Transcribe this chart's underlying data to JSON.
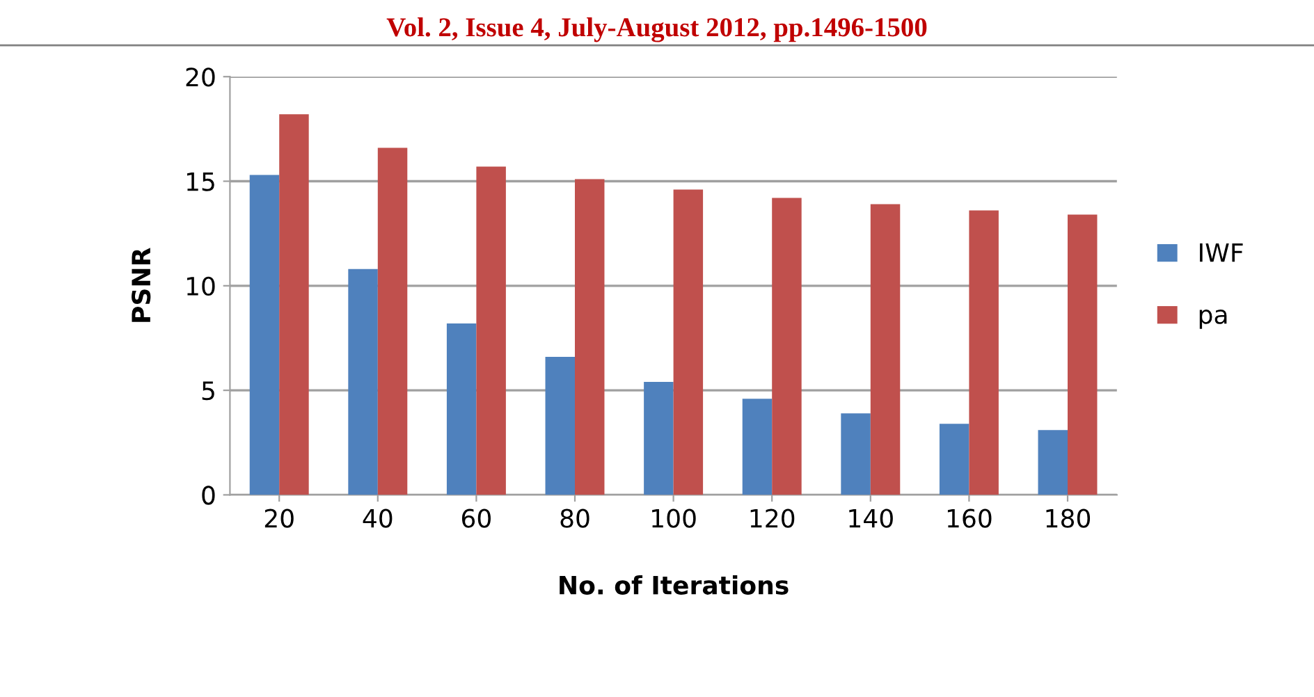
{
  "chart_data": {
    "type": "bar",
    "annotations": [
      "Vol. 2, Issue 4, July-August 2012, pp.1496-1500"
    ],
    "xlabel": "No. of Iterations",
    "ylabel": "PSNR",
    "categories": [
      "20",
      "40",
      "60",
      "80",
      "100",
      "120",
      "140",
      "160",
      "180"
    ],
    "series": [
      {
        "name": "IWF",
        "color": "#4f81bd",
        "values": [
          15.3,
          10.8,
          8.2,
          6.6,
          5.4,
          4.6,
          3.9,
          3.4,
          3.1
        ]
      },
      {
        "name": "pa",
        "color": "#c0504d",
        "values": [
          18.2,
          16.6,
          15.7,
          15.1,
          14.6,
          14.2,
          13.9,
          13.6,
          13.4
        ]
      }
    ],
    "ylim": [
      0,
      20
    ],
    "yticks": [
      0,
      5,
      10,
      15,
      20
    ],
    "grid": "y",
    "legend": "right"
  }
}
